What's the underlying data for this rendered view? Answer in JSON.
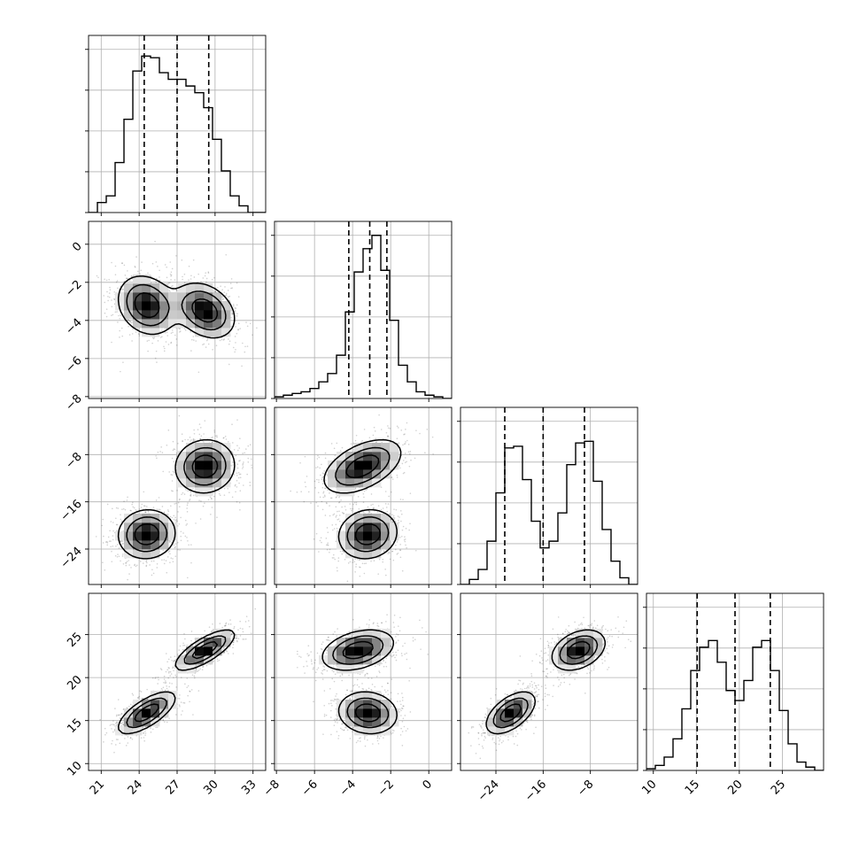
{
  "chart_data": {
    "type": "corner",
    "title": "",
    "parameters": [
      {
        "range": [
          20,
          34
        ],
        "ticks": [
          21,
          24,
          27,
          30,
          33
        ],
        "tick_labels": [
          "21",
          "24",
          "27",
          "30",
          "33"
        ],
        "quantiles": [
          24.4,
          27.0,
          29.5
        ]
      },
      {
        "range": [
          -8.1,
          1.2
        ],
        "ticks": [
          -8,
          -6,
          -4,
          -2,
          0
        ],
        "tick_labels": [
          "−8",
          "−6",
          "−4",
          "−2",
          "0"
        ],
        "quantiles": [
          -4.2,
          -3.1,
          -2.2
        ]
      },
      {
        "range": [
          -30,
          0
        ],
        "ticks": [
          -24,
          -16,
          -8
        ],
        "tick_labels": [
          "−24",
          "−16",
          "−8"
        ],
        "quantiles": [
          -22.5,
          -16.0,
          -9.0
        ]
      },
      {
        "range": [
          9.2,
          29.8
        ],
        "ticks": [
          10,
          15,
          20,
          25
        ],
        "tick_labels": [
          "10",
          "15",
          "20",
          "25"
        ],
        "quantiles": [
          15.1,
          19.5,
          23.6
        ]
      }
    ],
    "histograms": [
      [
        0.0,
        0.06,
        0.1,
        0.3,
        0.56,
        0.85,
        0.94,
        0.93,
        0.84,
        0.8,
        0.8,
        0.76,
        0.72,
        0.63,
        0.44,
        0.25,
        0.1,
        0.04,
        0.0,
        0.0
      ],
      [
        0.01,
        0.02,
        0.03,
        0.04,
        0.06,
        0.1,
        0.15,
        0.26,
        0.52,
        0.76,
        0.9,
        0.98,
        0.77,
        0.47,
        0.2,
        0.1,
        0.04,
        0.02,
        0.01,
        0.0
      ],
      [
        0.0,
        0.03,
        0.09,
        0.26,
        0.55,
        0.82,
        0.83,
        0.63,
        0.38,
        0.22,
        0.26,
        0.43,
        0.72,
        0.85,
        0.86,
        0.62,
        0.33,
        0.14,
        0.04,
        0.0
      ],
      [
        0.01,
        0.03,
        0.08,
        0.19,
        0.37,
        0.6,
        0.74,
        0.78,
        0.65,
        0.48,
        0.42,
        0.54,
        0.74,
        0.78,
        0.6,
        0.36,
        0.16,
        0.05,
        0.02,
        0.0
      ]
    ],
    "grid": true
  }
}
